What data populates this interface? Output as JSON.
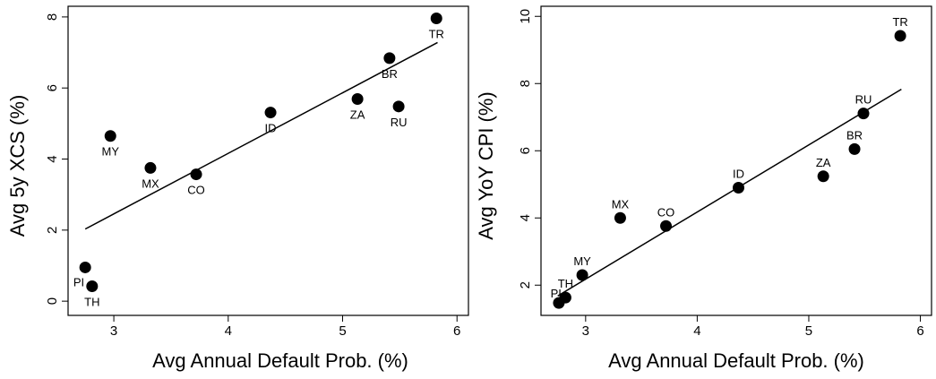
{
  "chart_data": [
    {
      "type": "scatter",
      "xlabel": "Avg Annual Default Prob. (%)",
      "ylabel": "Avg 5y XCS (%)",
      "xlim": [
        2.6,
        6.1
      ],
      "ylim": [
        -0.4,
        8.3
      ],
      "xticks": [
        "3",
        "4",
        "5",
        "6"
      ],
      "yticks": [
        "0",
        "2",
        "4",
        "6",
        "8"
      ],
      "trendline": {
        "x": [
          2.75,
          5.83
        ],
        "y": [
          2.03,
          7.28
        ]
      },
      "points": [
        {
          "label": "PI",
          "x": 2.75,
          "y": 0.95,
          "label_pos": "below-left"
        },
        {
          "label": "TH",
          "x": 2.81,
          "y": 0.42,
          "label_pos": "below"
        },
        {
          "label": "MY",
          "x": 2.97,
          "y": 4.65,
          "label_pos": "below"
        },
        {
          "label": "MX",
          "x": 3.32,
          "y": 3.75,
          "label_pos": "below"
        },
        {
          "label": "CO",
          "x": 3.72,
          "y": 3.57,
          "label_pos": "below"
        },
        {
          "label": "ID",
          "x": 4.37,
          "y": 5.31,
          "label_pos": "below"
        },
        {
          "label": "ZA",
          "x": 5.13,
          "y": 5.69,
          "label_pos": "below"
        },
        {
          "label": "BR",
          "x": 5.41,
          "y": 6.84,
          "label_pos": "below"
        },
        {
          "label": "RU",
          "x": 5.49,
          "y": 5.48,
          "label_pos": "below"
        },
        {
          "label": "TR",
          "x": 5.82,
          "y": 7.96,
          "label_pos": "below"
        }
      ]
    },
    {
      "type": "scatter",
      "xlabel": "Avg Annual Default Prob. (%)",
      "ylabel": "Avg YoY CPI (%)",
      "xlim": [
        2.6,
        6.1
      ],
      "ylim": [
        1.1,
        10.3
      ],
      "xticks": [
        "3",
        "4",
        "5",
        "6"
      ],
      "yticks": [
        "2",
        "4",
        "6",
        "8",
        "10"
      ],
      "trendline": {
        "x": [
          2.75,
          5.83
        ],
        "y": [
          1.68,
          7.83
        ]
      },
      "points": [
        {
          "label": "PI",
          "x": 2.76,
          "y": 1.47,
          "label_pos": "above-left"
        },
        {
          "label": "TH",
          "x": 2.82,
          "y": 1.63,
          "label_pos": "above"
        },
        {
          "label": "MY",
          "x": 2.97,
          "y": 2.3,
          "label_pos": "above"
        },
        {
          "label": "MX",
          "x": 3.31,
          "y": 4.0,
          "label_pos": "above"
        },
        {
          "label": "CO",
          "x": 3.72,
          "y": 3.76,
          "label_pos": "above"
        },
        {
          "label": "ID",
          "x": 4.37,
          "y": 4.9,
          "label_pos": "above"
        },
        {
          "label": "ZA",
          "x": 5.13,
          "y": 5.24,
          "label_pos": "above"
        },
        {
          "label": "BR",
          "x": 5.41,
          "y": 6.05,
          "label_pos": "above"
        },
        {
          "label": "RU",
          "x": 5.49,
          "y": 7.11,
          "label_pos": "above"
        },
        {
          "label": "TR",
          "x": 5.82,
          "y": 9.42,
          "label_pos": "above"
        }
      ]
    }
  ]
}
